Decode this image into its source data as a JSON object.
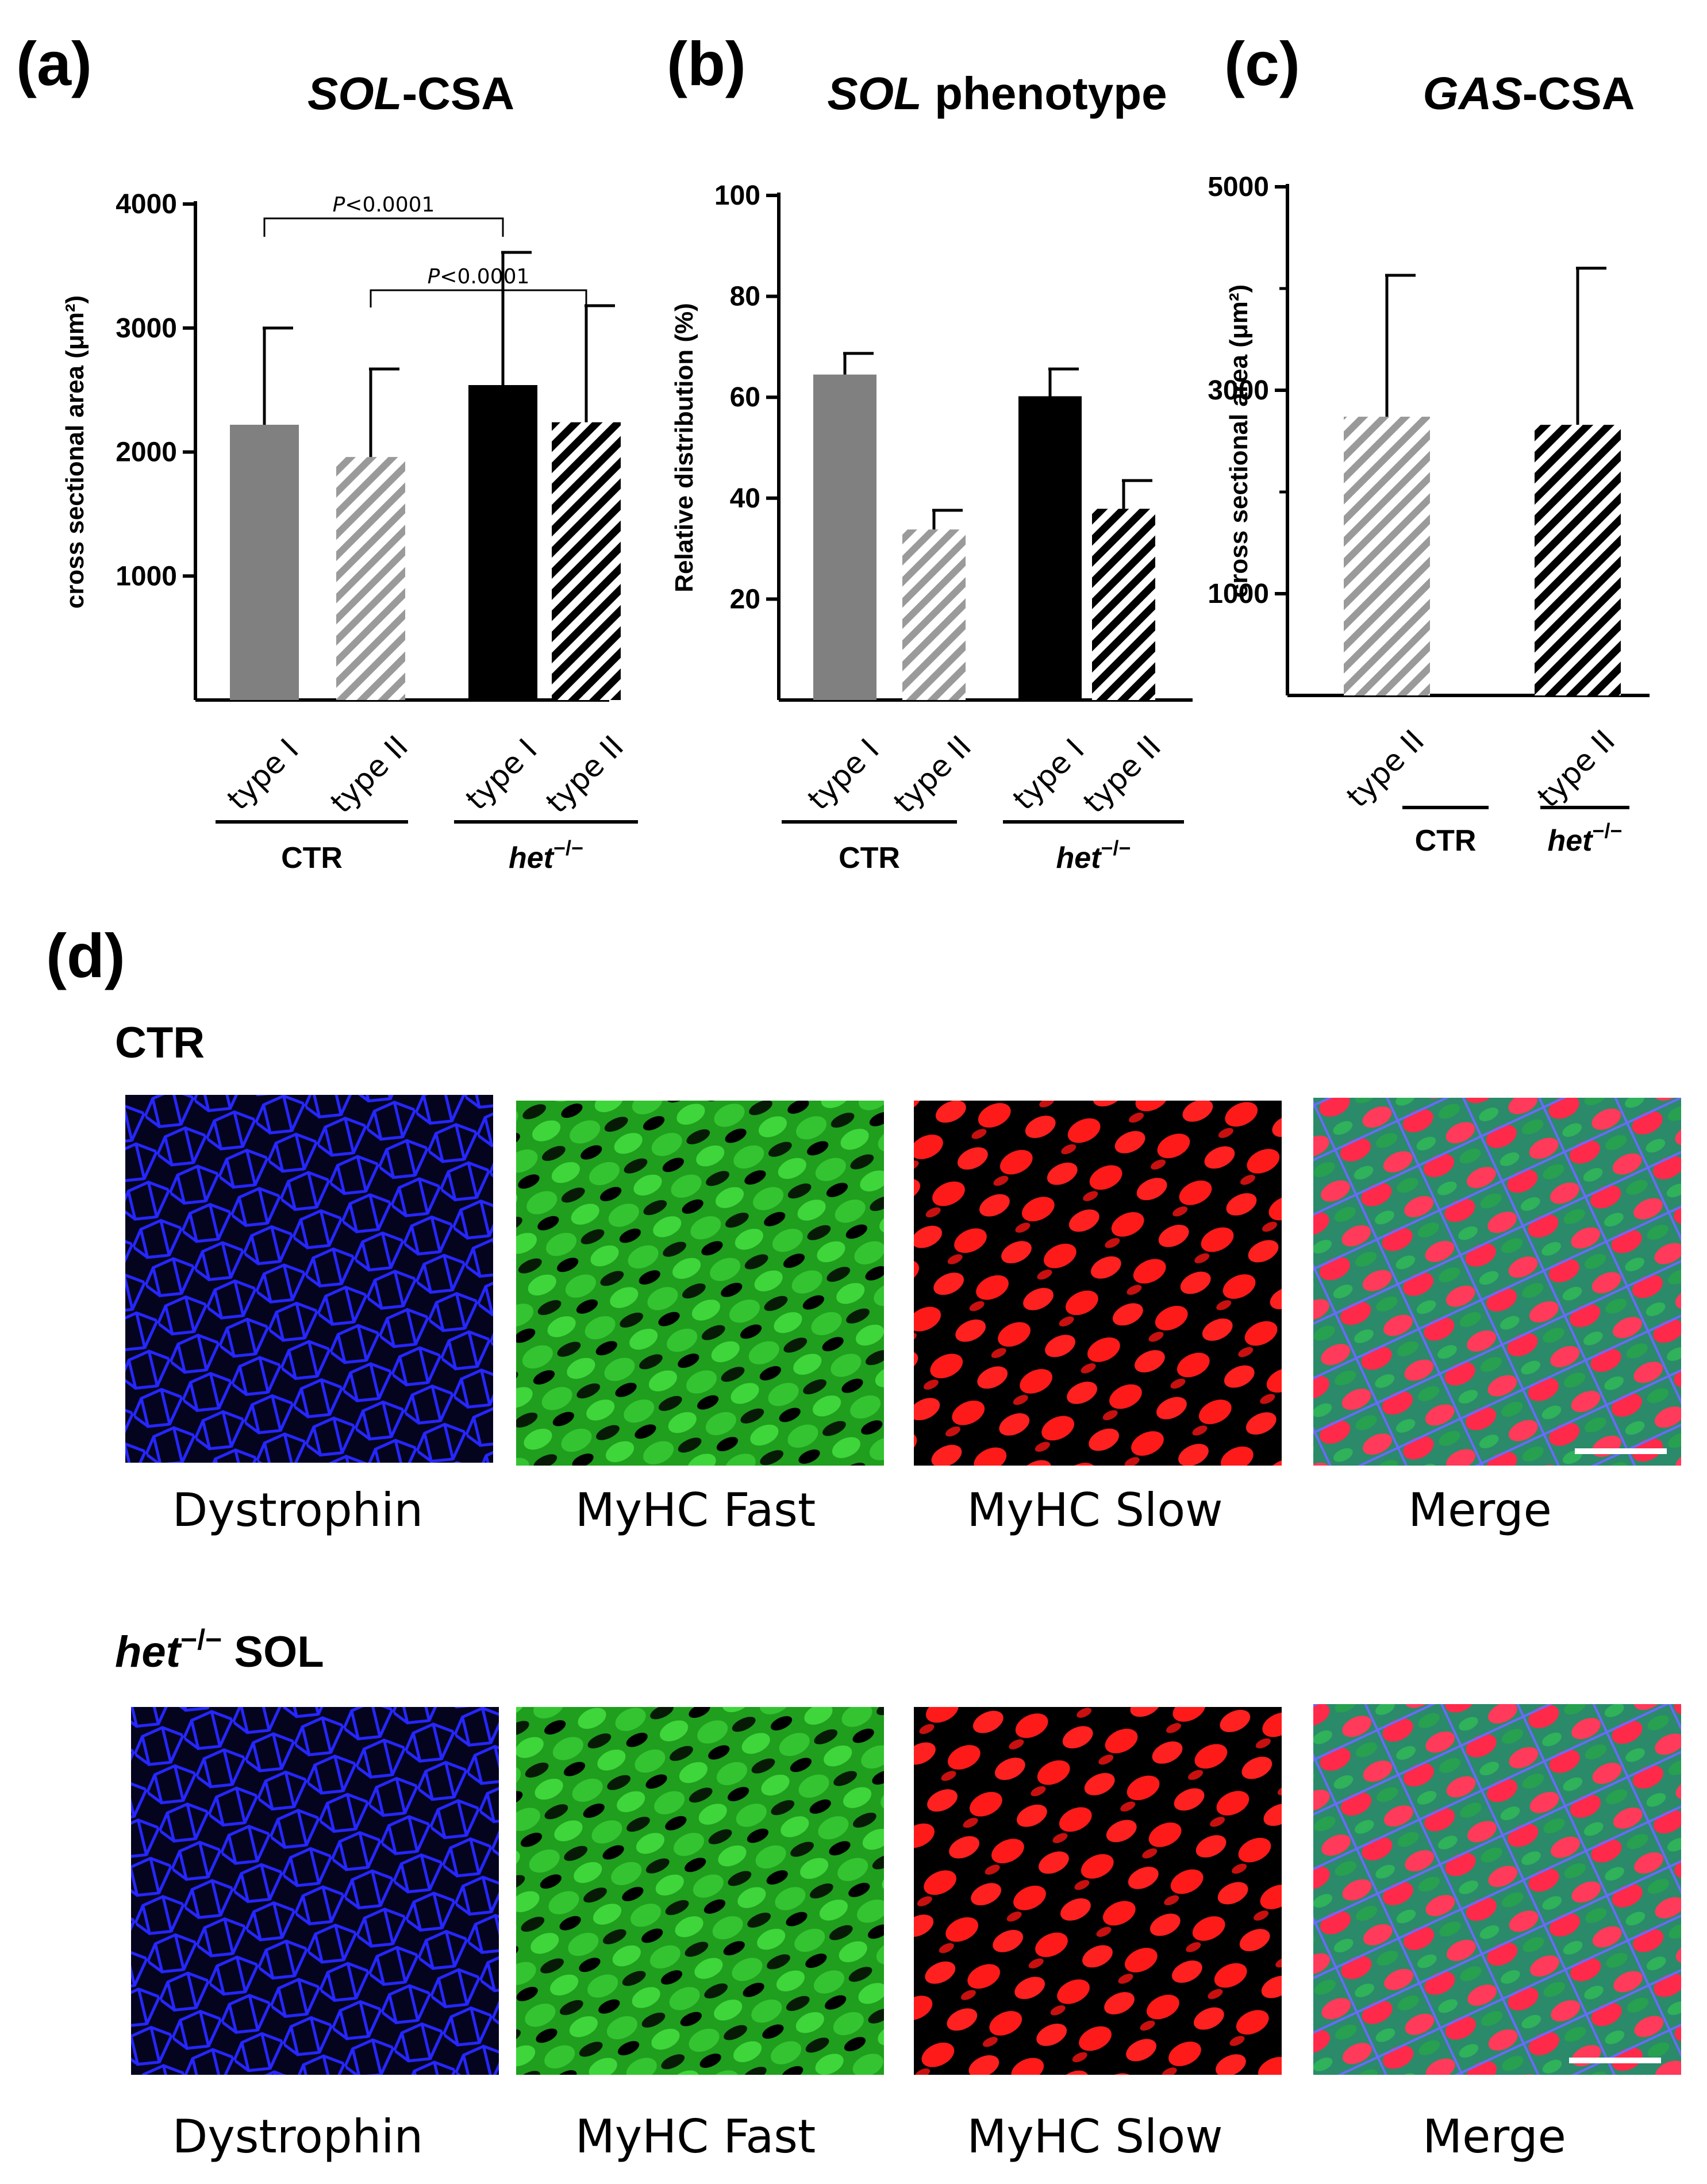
{
  "panel_labels": [
    "(a)",
    "(b)",
    "(c)",
    "(d)"
  ],
  "chart_data": [
    {
      "type": "bar",
      "panel": "(a)",
      "title_italic": "SOL",
      "title_rest": "-CSA",
      "ylabel": "cross sectional area (μm²)",
      "ylim": [
        0,
        4000
      ],
      "yticks": [
        1000,
        2000,
        3000,
        4000
      ],
      "categories": [
        "type I",
        "type II",
        "type I",
        "type II"
      ],
      "groups": [
        {
          "label": "CTR",
          "italic": false,
          "members": [
            0,
            1
          ]
        },
        {
          "label_italic": "het",
          "label_sup": "−/−",
          "members": [
            2,
            3
          ]
        }
      ],
      "values": [
        2220,
        1960,
        2540,
        2240
      ],
      "errors": [
        780,
        710,
        1070,
        940
      ],
      "fills": [
        "#808080",
        "hatch-gray",
        "#000000",
        "hatch-black"
      ],
      "annotations": [
        {
          "text_italic": "P",
          "text_rest": "<0.0001",
          "from": 0,
          "to": 2
        },
        {
          "text_italic": "P",
          "text_rest": "<0.0001",
          "from": 1,
          "to": 3
        }
      ]
    },
    {
      "type": "bar",
      "panel": "(b)",
      "title_italic": "SOL",
      "title_rest": " phenotype",
      "ylabel": "Relative distribution (%)",
      "ylim": [
        0,
        100
      ],
      "yticks": [
        20,
        40,
        60,
        80,
        100
      ],
      "categories": [
        "type I",
        "type II",
        "type I",
        "type II"
      ],
      "groups": [
        {
          "label": "CTR",
          "italic": false,
          "members": [
            0,
            1
          ]
        },
        {
          "label_italic": "het",
          "label_sup": "−/−",
          "members": [
            2,
            3
          ]
        }
      ],
      "values": [
        64.5,
        33.8,
        60.2,
        37.9
      ],
      "errors": [
        4.2,
        3.8,
        5.4,
        5.6
      ],
      "fills": [
        "#808080",
        "hatch-gray",
        "#000000",
        "hatch-black"
      ]
    },
    {
      "type": "bar",
      "panel": "(c)",
      "title_italic": "GAS",
      "title_rest": "-CSA",
      "ylabel": "cross sectional area (μm²)",
      "ylim": [
        0,
        5000
      ],
      "yticks": [
        1000,
        3000,
        5000
      ],
      "minor_yticks": [
        2000,
        4000
      ],
      "categories": [
        "type II",
        "type II"
      ],
      "groups": [
        {
          "label": "CTR",
          "italic": false,
          "members": [
            0
          ]
        },
        {
          "label_italic": "het",
          "label_sup": "−/−",
          "members": [
            1
          ]
        }
      ],
      "values": [
        2740,
        2660
      ],
      "errors": [
        1390,
        1540
      ],
      "fills": [
        "hatch-gray",
        "hatch-black"
      ]
    }
  ],
  "micrographs": {
    "rows": [
      {
        "label": "CTR",
        "label_italic": "",
        "label_sup": ""
      },
      {
        "label": " SOL",
        "label_italic": "het",
        "label_sup": "−/−"
      }
    ],
    "captions": [
      "Dystrophin",
      "MyHC Fast",
      "MyHC Slow",
      "Merge"
    ],
    "channel_colors": {
      "dystrophin": "#1a1aff",
      "fast": "#22c41e",
      "slow": "#ff1a1a",
      "background": "#000000"
    }
  }
}
